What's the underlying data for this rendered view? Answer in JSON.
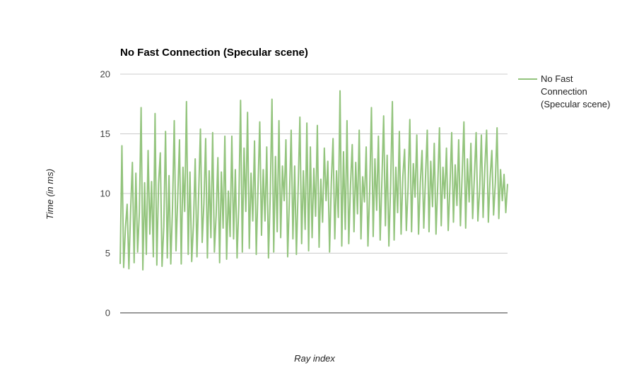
{
  "chart_data": {
    "type": "line",
    "title": "No Fast Connection (Specular scene)",
    "xlabel": "Ray index",
    "ylabel": "Time (in ms)",
    "ylim": [
      0,
      20
    ],
    "yticks": [
      0,
      5,
      10,
      15,
      20
    ],
    "grid": true,
    "legend_position": "right",
    "color": "#93c47d",
    "series": [
      {
        "name": "No Fast Connection (Specular scene)",
        "values": [
          4.1,
          14.0,
          3.8,
          7.1,
          9.1,
          3.7,
          8.6,
          12.6,
          4.2,
          11.7,
          5.1,
          8.4,
          17.2,
          3.6,
          10.9,
          4.9,
          13.6,
          6.6,
          11.0,
          4.7,
          16.7,
          4.0,
          10.8,
          13.4,
          3.9,
          7.2,
          15.2,
          4.6,
          11.5,
          4.1,
          8.8,
          16.1,
          5.2,
          9.7,
          14.5,
          4.1,
          12.2,
          8.5,
          17.7,
          4.9,
          11.8,
          4.3,
          7.4,
          12.9,
          4.7,
          10.1,
          15.4,
          5.9,
          9.2,
          14.6,
          4.6,
          11.9,
          6.3,
          15.1,
          5.1,
          8.2,
          13.0,
          4.2,
          11.8,
          7.1,
          14.8,
          4.5,
          10.2,
          6.4,
          14.8,
          6.2,
          12.0,
          4.6,
          9.1,
          17.8,
          5.1,
          13.8,
          8.5,
          16.8,
          5.4,
          11.7,
          7.7,
          14.4,
          4.9,
          10.5,
          16.0,
          6.5,
          12.0,
          7.7,
          13.9,
          4.6,
          9.8,
          17.9,
          5.1,
          13.1,
          6.8,
          16.1,
          6.3,
          12.3,
          9.4,
          14.5,
          4.7,
          9.6,
          15.3,
          6.2,
          12.3,
          4.9,
          10.4,
          16.4,
          5.8,
          11.9,
          7.0,
          15.9,
          5.2,
          13.9,
          6.3,
          12.1,
          8.1,
          15.7,
          5.5,
          11.2,
          7.6,
          13.8,
          9.4,
          12.7,
          5.1,
          10.9,
          14.6,
          6.2,
          11.9,
          8.0,
          18.6,
          5.6,
          13.5,
          7.0,
          16.1,
          5.8,
          10.7,
          14.1,
          6.8,
          12.6,
          8.3,
          15.3,
          6.2,
          11.4,
          9.3,
          13.9,
          5.6,
          10.2,
          17.2,
          6.4,
          12.9,
          8.6,
          14.8,
          6.1,
          11.1,
          16.5,
          7.3,
          13.2,
          5.6,
          10.7,
          17.7,
          6.1,
          12.2,
          8.4,
          15.2,
          6.6,
          11.4,
          13.7,
          6.9,
          10.5,
          16.2,
          6.8,
          12.5,
          9.7,
          14.9,
          6.6,
          10.9,
          13.6,
          7.1,
          11.4,
          15.3,
          6.8,
          12.7,
          8.9,
          14.2,
          6.6,
          10.7,
          15.5,
          7.3,
          12.2,
          9.6,
          13.8,
          6.9,
          10.6,
          15.1,
          7.6,
          12.4,
          9.0,
          14.5,
          7.3,
          11.6,
          16.0,
          7.1,
          12.9,
          9.3,
          14.2,
          7.9,
          11.4,
          15.1,
          7.7,
          10.3,
          14.9,
          8.0,
          12.2,
          15.3,
          7.6,
          11.3,
          13.6,
          8.2,
          10.9,
          15.5,
          7.9,
          12.0,
          9.4,
          11.6,
          8.4,
          10.8
        ]
      }
    ]
  }
}
